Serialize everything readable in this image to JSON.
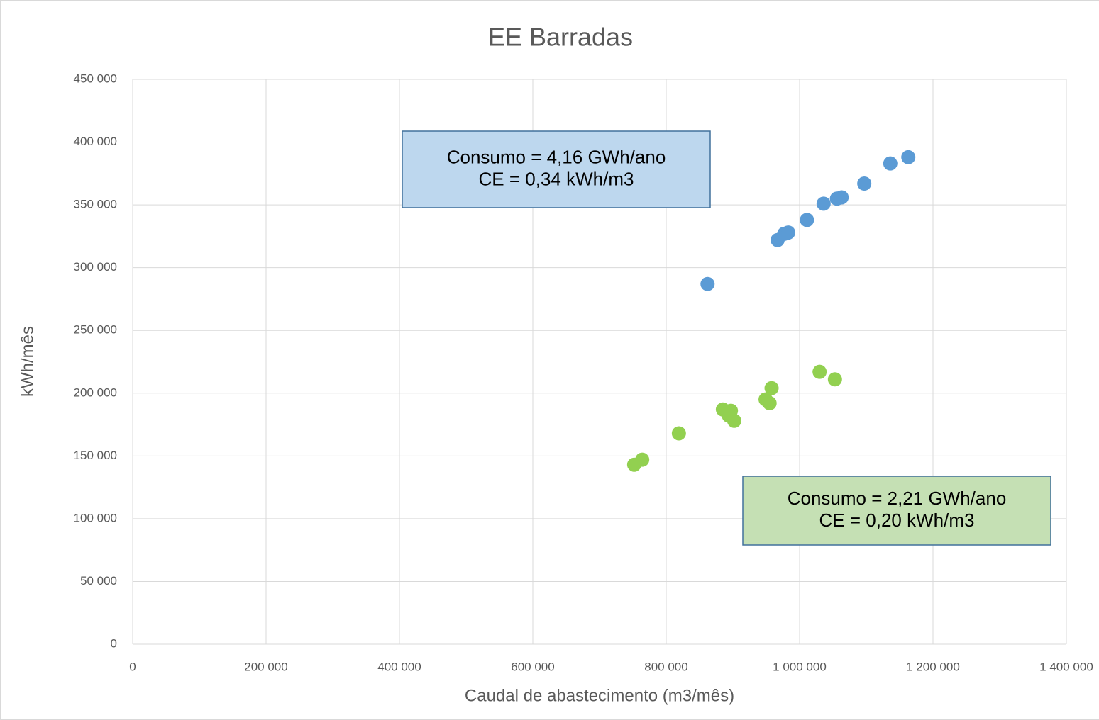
{
  "chart_data": {
    "type": "scatter",
    "title": "EE Barradas",
    "x_label": "Caudal de abastecimento (m3/mês)",
    "y_label": "kWh/mês",
    "xlim": [
      0,
      1400000
    ],
    "ylim": [
      0,
      450000
    ],
    "xticks": [
      0,
      {
        "value": 200000,
        "label": "200 000"
      },
      {
        "value": 400000,
        "label": "400 000"
      },
      {
        "value": 600000,
        "label": "600 000"
      },
      {
        "value": 800000,
        "label": "800 000"
      },
      {
        "value": 1000000,
        "label": "1 000 000"
      },
      {
        "value": 1200000,
        "label": "1 200 000"
      },
      {
        "value": 1400000,
        "label": "1 400 000"
      }
    ],
    "yticks": [
      0,
      {
        "value": 50000,
        "label": "50 000"
      },
      {
        "value": 100000,
        "label": "100 000"
      },
      {
        "value": 150000,
        "label": "150 000"
      },
      {
        "value": 200000,
        "label": "200 000"
      },
      {
        "value": 250000,
        "label": "250 000"
      },
      {
        "value": 300000,
        "label": "300 000"
      },
      {
        "value": 350000,
        "label": "350 000"
      },
      {
        "value": 400000,
        "label": "400 000"
      },
      {
        "value": 450000,
        "label": "450 000"
      }
    ],
    "grid": true,
    "series": [
      {
        "color": "#5b9bd5",
        "x": [
          862000,
          967000,
          977000,
          983000,
          1011000,
          1036000,
          1056000,
          1063000,
          1097000,
          1136000,
          1163000
        ],
        "values": [
          287000,
          322000,
          327000,
          328000,
          338000,
          351000,
          355000,
          356000,
          367000,
          383000,
          388000
        ]
      },
      {
        "color": "#92d050",
        "x": [
          752000,
          764000,
          819000,
          885000,
          897000,
          894000,
          902000,
          949000,
          955000,
          958000,
          1030000,
          1053000
        ],
        "values": [
          143000,
          147000,
          168000,
          187000,
          186000,
          182000,
          178000,
          195000,
          192000,
          204000,
          217000,
          211000
        ]
      }
    ],
    "annotations": [
      {
        "lines": [
          "Consumo = 4,16 GWh/ano",
          "CE = 0,34 kWh/m3"
        ],
        "color": "#bdd7ee"
      },
      {
        "lines": [
          "Consumo = 2,21 GWh/ano",
          "CE = 0,20 kWh/m3"
        ],
        "color": "#c5e0b4"
      }
    ]
  }
}
